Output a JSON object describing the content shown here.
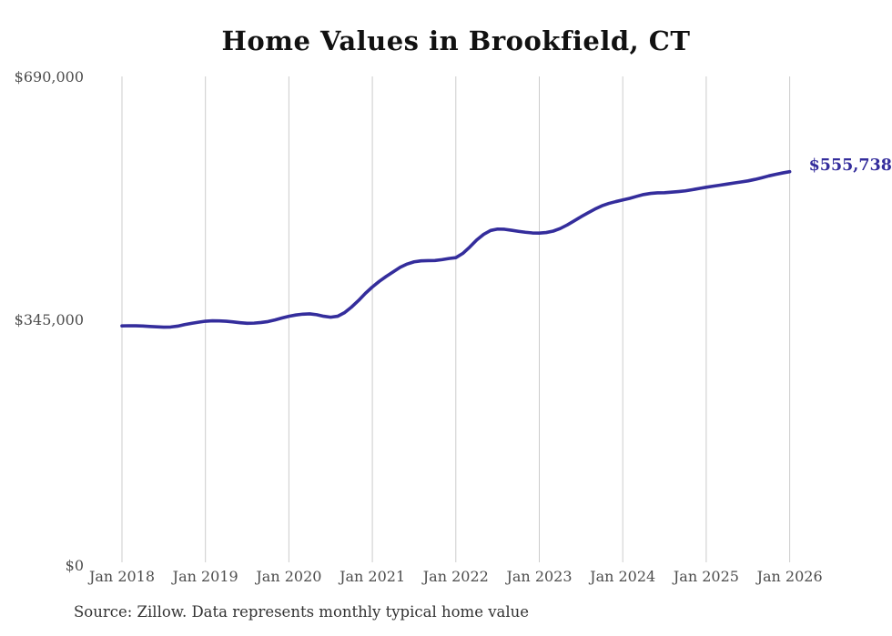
{
  "chart": {
    "title": "Home Values in Brookfield, CT",
    "end_label": "$555,738",
    "source_note": "Source: Zillow. Data represents monthly typical home value"
  },
  "colors": {
    "line": "#342d9c",
    "end_label_text": "#342d9c",
    "grid": "#cccccc",
    "axis_text": "#4d4d4d",
    "title_text": "#111111",
    "source_text": "#333333"
  },
  "chart_data": {
    "type": "line",
    "title": "Home Values in Brookfield, CT",
    "xlabel": "",
    "ylabel": "",
    "ylim": [
      0,
      690000
    ],
    "grid": "vertical-only",
    "legend": "none",
    "x_start": "2018-01",
    "x_interval": "monthly",
    "x_tick_labels": [
      "Jan 2018",
      "Jan 2019",
      "Jan 2020",
      "Jan 2021",
      "Jan 2022",
      "Jan 2023",
      "Jan 2024",
      "Jan 2025",
      "Jan 2026"
    ],
    "y_ticks": [
      0,
      345000,
      690000
    ],
    "y_tick_labels": [
      "$0",
      "$345,000",
      "$690,000"
    ],
    "last_value": 555738,
    "last_value_label": "$555,738",
    "source": "Source: Zillow. Data represents monthly typical home value",
    "series": [
      {
        "name": "Typical home value",
        "color": "#342d9c",
        "values": [
          337400,
          337600,
          337500,
          337200,
          336600,
          336000,
          335600,
          335800,
          337000,
          339200,
          341000,
          342600,
          344000,
          344600,
          344500,
          344000,
          343000,
          341900,
          341000,
          341300,
          342200,
          343500,
          345800,
          348500,
          351000,
          352800,
          354000,
          354400,
          353200,
          351000,
          349700,
          351000,
          356100,
          364000,
          373200,
          383500,
          392500,
          400500,
          407500,
          414000,
          420400,
          425000,
          428100,
          429500,
          429800,
          430000,
          431200,
          432800,
          434000,
          440000,
          449000,
          459000,
          467000,
          472500,
          474500,
          474200,
          472800,
          471300,
          470000,
          469000,
          468800,
          469600,
          471600,
          475200,
          480200,
          486000,
          491900,
          497500,
          502800,
          507400,
          510800,
          513400,
          515700,
          518000,
          520800,
          523400,
          525000,
          525800,
          526000,
          526800,
          527600,
          528600,
          530200,
          532000,
          533700,
          535200,
          536700,
          538200,
          539700,
          541200,
          542700,
          544800,
          547200,
          549800,
          552000,
          554000,
          555738
        ]
      }
    ]
  }
}
